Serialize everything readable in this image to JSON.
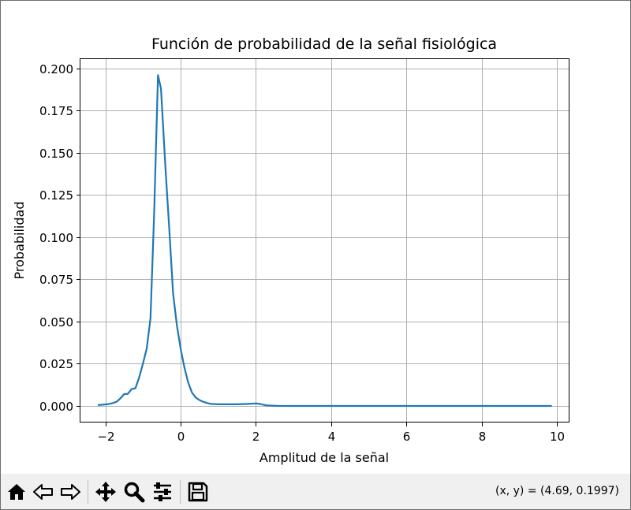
{
  "chart_data": {
    "type": "line",
    "title": "Función de probabilidad de la señal fisiológica",
    "xlabel": "Amplitud de la señal",
    "ylabel": "Probabilidad",
    "xlim": [
      -2.66,
      10.33
    ],
    "ylim": [
      -0.0098,
      0.2055
    ],
    "grid": true,
    "xticks": [
      -2,
      0,
      2,
      4,
      6,
      8,
      10
    ],
    "xtick_labels": [
      "−2",
      "0",
      "2",
      "4",
      "6",
      "8",
      "10"
    ],
    "yticks": [
      0.0,
      0.025,
      0.05,
      0.075,
      0.1,
      0.125,
      0.15,
      0.175,
      0.2
    ],
    "ytick_labels": [
      "0.000",
      "0.025",
      "0.050",
      "0.075",
      "0.100",
      "0.125",
      "0.150",
      "0.175",
      "0.200"
    ],
    "series": [
      {
        "color": "#1f77b4",
        "x": [
          -2.2,
          -1.95,
          -1.8,
          -1.7,
          -1.6,
          -1.5,
          -1.4,
          -1.3,
          -1.2,
          -1.1,
          -1.0,
          -0.9,
          -0.8,
          -0.7,
          -0.6,
          -0.52,
          -0.4,
          -0.3,
          -0.2,
          -0.1,
          0.0,
          0.1,
          0.2,
          0.3,
          0.4,
          0.5,
          0.6,
          0.7,
          0.8,
          1.0,
          1.2,
          1.5,
          1.8,
          2.0,
          2.1,
          2.3,
          2.6,
          3.0,
          4.0,
          6.0,
          8.0,
          9.86
        ],
        "y": [
          0.0005,
          0.001,
          0.0017,
          0.0025,
          0.0045,
          0.007,
          0.0072,
          0.01,
          0.0105,
          0.017,
          0.025,
          0.034,
          0.052,
          0.115,
          0.196,
          0.188,
          0.14,
          0.105,
          0.067,
          0.048,
          0.034,
          0.023,
          0.014,
          0.008,
          0.005,
          0.0035,
          0.0025,
          0.0018,
          0.0012,
          0.001,
          0.001,
          0.001,
          0.0012,
          0.0015,
          0.0012,
          0.0003,
          0.0,
          0.0,
          0.0,
          0.0,
          0.0,
          0.0
        ]
      }
    ]
  },
  "toolbar": {
    "coords_text": "(x, y) = (4.69, 0.1997)"
  }
}
